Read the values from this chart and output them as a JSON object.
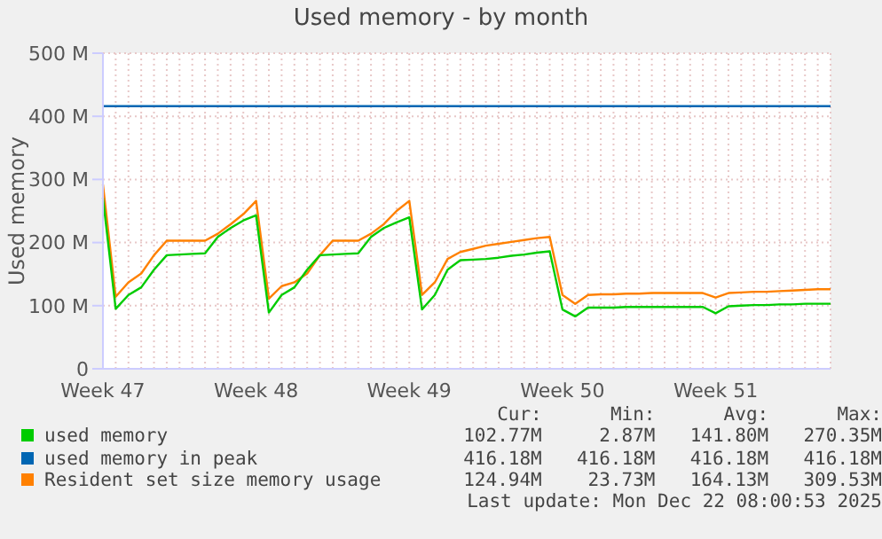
{
  "chart_data": {
    "type": "line",
    "title": "Used memory - by month",
    "ylabel": "Used memory",
    "categories": [
      "Week 47",
      null,
      null,
      null,
      null,
      null,
      null,
      null,
      null,
      null,
      null,
      null,
      "Week 48",
      null,
      null,
      null,
      null,
      null,
      null,
      null,
      null,
      null,
      null,
      null,
      "Week 49",
      null,
      null,
      null,
      null,
      null,
      null,
      null,
      null,
      null,
      null,
      null,
      "Week 50",
      null,
      null,
      null,
      null,
      null,
      null,
      null,
      null,
      null,
      null,
      null,
      "Week 51",
      null,
      null,
      null,
      null,
      null,
      null,
      null,
      null,
      null
    ],
    "ylim": [
      0,
      500
    ],
    "yticks": [
      0,
      {
        "value": 100,
        "label": "100 M"
      },
      {
        "value": 200,
        "label": "200 M"
      },
      {
        "value": 300,
        "label": "300 M"
      },
      {
        "value": 400,
        "label": "400 M"
      },
      {
        "value": 500,
        "label": "500 M"
      }
    ],
    "grid": true,
    "legend": "bottom",
    "marker": "none",
    "line_style": "solid",
    "series": [
      {
        "name": "used memory",
        "color": "#00cc00",
        "values": [
          271,
          95,
          117,
          129,
          157,
          180,
          181,
          182,
          183,
          209,
          223,
          235,
          243,
          89,
          117,
          129,
          157,
          180,
          181,
          182,
          183,
          209,
          223,
          232,
          240,
          94,
          117,
          157,
          172,
          173,
          174,
          176,
          179,
          181,
          184,
          186,
          94,
          83,
          97,
          97,
          97,
          98,
          98,
          98,
          98,
          98,
          98,
          98,
          88,
          99,
          100,
          101,
          101,
          102,
          102,
          103,
          103,
          103
        ]
      },
      {
        "name": "used memory in peak",
        "color": "#0066b3",
        "values": [
          416,
          416,
          416,
          416,
          416,
          416,
          416,
          416,
          416,
          416,
          416,
          416,
          416,
          416,
          416,
          416,
          416,
          416,
          416,
          416,
          416,
          416,
          416,
          416,
          416,
          416,
          416,
          416,
          416,
          416,
          416,
          416,
          416,
          416,
          416,
          416,
          416,
          416,
          416,
          416,
          416,
          416,
          416,
          416,
          416,
          416,
          416,
          416,
          416,
          416,
          416,
          416,
          416,
          416,
          416,
          416,
          416,
          416
        ]
      },
      {
        "name": "Resident set size memory usage",
        "color": "#ff8000",
        "values": [
          292,
          114,
          137,
          151,
          180,
          203,
          203,
          203,
          203,
          214,
          229,
          245,
          266,
          111,
          131,
          137,
          151,
          180,
          203,
          203,
          203,
          214,
          229,
          250,
          266,
          117,
          137,
          174,
          185,
          190,
          195,
          198,
          201,
          204,
          207,
          209,
          117,
          103,
          117,
          118,
          118,
          119,
          119,
          120,
          120,
          120,
          120,
          120,
          113,
          120,
          121,
          122,
          122,
          123,
          124,
          125,
          126,
          126
        ]
      }
    ],
    "annotations": [
      "Cur:",
      "Min:",
      "Avg:",
      "Max:",
      "102.77M",
      "2.87M",
      "141.80M",
      "270.35M",
      "416.18M",
      "416.18M",
      "416.18M",
      "416.18M",
      "124.94M",
      "23.73M",
      "164.13M",
      "309.53M",
      "Last update: Mon Dec 22 08:00:53 2025"
    ]
  }
}
